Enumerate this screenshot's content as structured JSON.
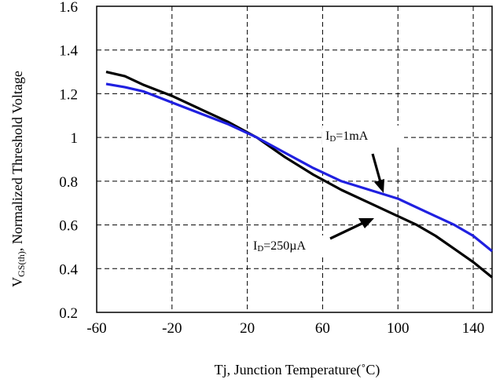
{
  "chart_data": {
    "type": "line",
    "xlabel": "Tj, Junction Temperature(˚C)",
    "ylabel_main": "V",
    "ylabel_sub": "GS(th)",
    "ylabel_rest": ", Normalized Threshold Voltage",
    "xlim": [
      -60,
      150
    ],
    "ylim": [
      0.2,
      1.6
    ],
    "x_ticks": [
      -60,
      -20,
      20,
      60,
      100,
      140
    ],
    "x_tick_labels": [
      "-60",
      "-20",
      "20",
      "60",
      "100",
      "140"
    ],
    "y_ticks": [
      0.2,
      0.4,
      0.6,
      0.8,
      1.0,
      1.2,
      1.4,
      1.6
    ],
    "y_tick_labels": [
      "0.2",
      "0.4",
      "0.6",
      "0.8",
      "1",
      "1.2",
      "1.4",
      "1.6"
    ],
    "grid": true,
    "grid_style": "dashed",
    "series": [
      {
        "color": "#000000",
        "label_main": "I",
        "label_sub": "D",
        "label_rest": "=250µA",
        "points": [
          [
            -55,
            1.3
          ],
          [
            -45,
            1.28
          ],
          [
            -35,
            1.24
          ],
          [
            -20,
            1.19
          ],
          [
            -5,
            1.13
          ],
          [
            10,
            1.07
          ],
          [
            25,
            1.0
          ],
          [
            40,
            0.91
          ],
          [
            55,
            0.83
          ],
          [
            70,
            0.76
          ],
          [
            85,
            0.7
          ],
          [
            100,
            0.64
          ],
          [
            110,
            0.6
          ],
          [
            120,
            0.55
          ],
          [
            130,
            0.49
          ],
          [
            140,
            0.43
          ],
          [
            150,
            0.36
          ]
        ]
      },
      {
        "color": "#2020E0",
        "label_main": "I",
        "label_sub": "D",
        "label_rest": "=1mA",
        "points": [
          [
            -55,
            1.245
          ],
          [
            -45,
            1.23
          ],
          [
            -35,
            1.21
          ],
          [
            -20,
            1.16
          ],
          [
            -5,
            1.11
          ],
          [
            10,
            1.06
          ],
          [
            25,
            1.0
          ],
          [
            40,
            0.93
          ],
          [
            55,
            0.86
          ],
          [
            70,
            0.8
          ],
          [
            85,
            0.76
          ],
          [
            100,
            0.72
          ],
          [
            115,
            0.66
          ],
          [
            130,
            0.6
          ],
          [
            140,
            0.55
          ],
          [
            150,
            0.48
          ]
        ]
      }
    ]
  }
}
